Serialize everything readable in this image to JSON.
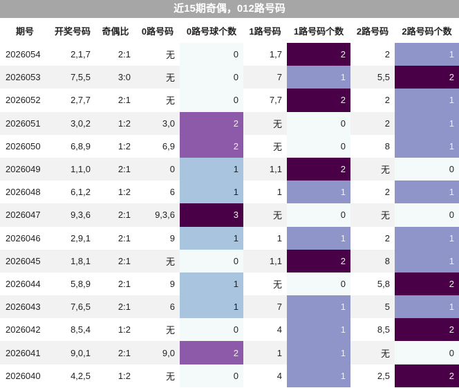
{
  "title": "近15期奇偶，012路号码",
  "table": {
    "headers": [
      "期号",
      "开奖号码",
      "奇偶比",
      "0路号码",
      "0路号球个数",
      "1路号码",
      "1路号码个数",
      "2路号码",
      "2路号码个数"
    ],
    "rows": [
      [
        "2026054",
        "2,1,7",
        "2:1",
        "无",
        0,
        "1,7",
        2,
        "2",
        1
      ],
      [
        "2026053",
        "7,5,5",
        "3:0",
        "无",
        0,
        "7",
        1,
        "5,5",
        2
      ],
      [
        "2026052",
        "2,7,7",
        "2:1",
        "无",
        0,
        "7,7",
        2,
        "2",
        1
      ],
      [
        "2026051",
        "3,0,2",
        "1:2",
        "3,0",
        2,
        "无",
        0,
        "2",
        1
      ],
      [
        "2026050",
        "6,8,9",
        "1:2",
        "6,9",
        2,
        "无",
        0,
        "8",
        1
      ],
      [
        "2026049",
        "1,1,0",
        "2:1",
        "0",
        1,
        "1,1",
        2,
        "无",
        0
      ],
      [
        "2026048",
        "6,1,2",
        "1:2",
        "6",
        1,
        "1",
        1,
        "2",
        1
      ],
      [
        "2026047",
        "9,3,6",
        "2:1",
        "9,3,6",
        3,
        "无",
        0,
        "无",
        0
      ],
      [
        "2026046",
        "2,9,1",
        "2:1",
        "9",
        1,
        "1",
        1,
        "2",
        1
      ],
      [
        "2026045",
        "1,8,1",
        "2:1",
        "无",
        0,
        "1,1",
        2,
        "8",
        1
      ],
      [
        "2026044",
        "5,8,9",
        "2:1",
        "9",
        1,
        "无",
        0,
        "5,8",
        2
      ],
      [
        "2026043",
        "7,6,5",
        "2:1",
        "6",
        1,
        "7",
        1,
        "5",
        1
      ],
      [
        "2026042",
        "8,5,4",
        "1:2",
        "无",
        0,
        "4",
        1,
        "8,5",
        2
      ],
      [
        "2026041",
        "9,0,1",
        "2:1",
        "9,0",
        2,
        "1",
        1,
        "无",
        0
      ],
      [
        "2026040",
        "4,2,5",
        "1:2",
        "无",
        0,
        "4",
        1,
        "2,5",
        2
      ]
    ]
  }
}
